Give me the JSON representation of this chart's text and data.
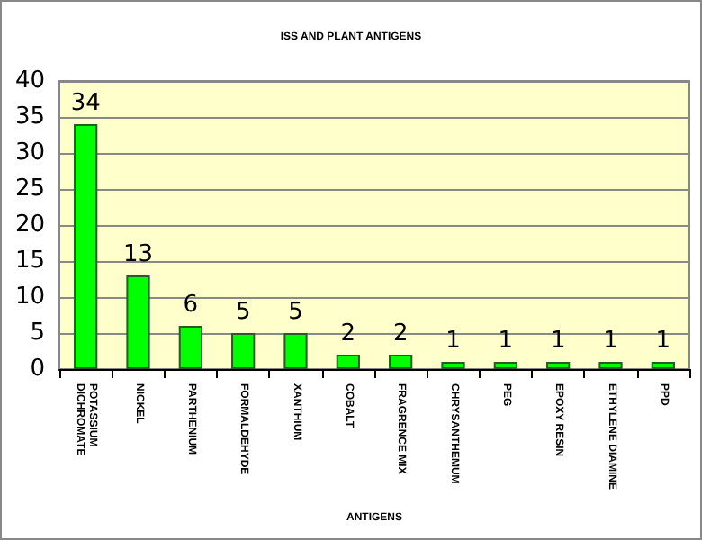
{
  "chart_data": {
    "type": "bar",
    "title": "ISS AND PLANT ANTIGENS",
    "xlabel": "ANTIGENS",
    "categories": [
      "POTASSIUM DICHROMATE",
      "NICKEL",
      "PARTHENIUM",
      "FORMALDEHYDE",
      "XANTHIUM",
      "COBALT",
      "FRAGRENCE MIX",
      "CHRYSANTHEMUM",
      "PEG",
      "EPOXY RESIN",
      "ETHYLENE DIAMINE",
      "PPD"
    ],
    "values": [
      34,
      13,
      6,
      5,
      5,
      2,
      2,
      1,
      1,
      1,
      1,
      1
    ],
    "color": "#00ff00",
    "ylim": [
      0,
      40
    ],
    "yticks": [
      0,
      5,
      10,
      15,
      20,
      25,
      30,
      35,
      40
    ],
    "grid": "y",
    "data_labels": true
  }
}
